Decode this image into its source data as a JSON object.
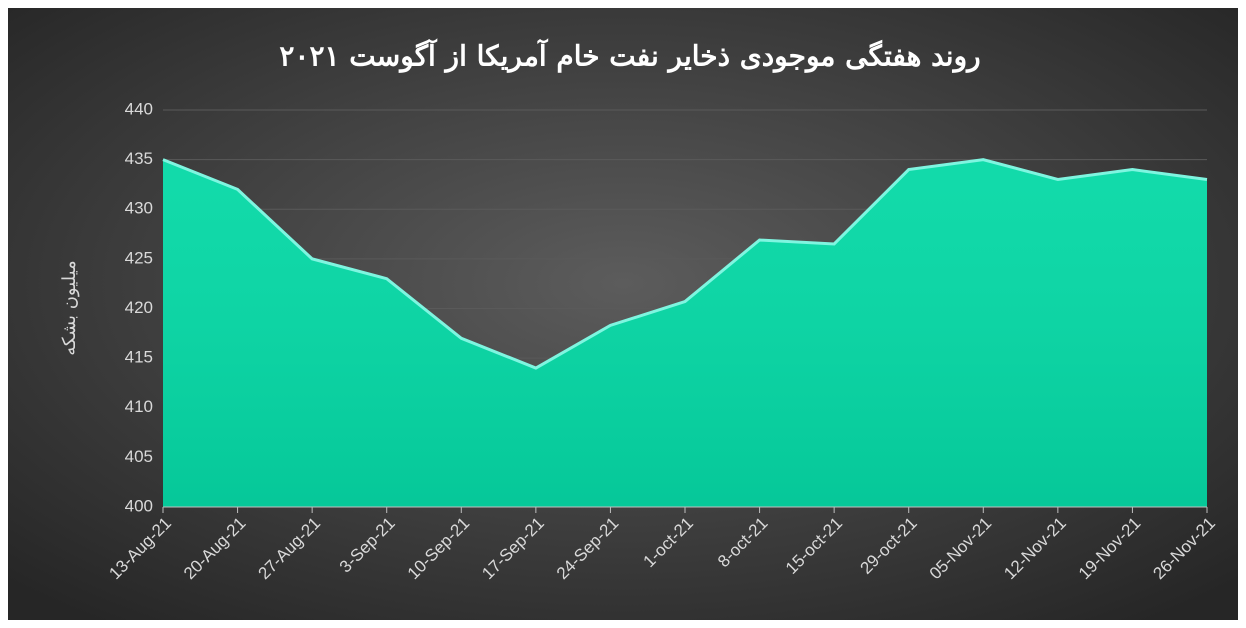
{
  "chart_data": {
    "type": "area",
    "title": "روند هفتگی موجودی ذخایر نفت خام آمریکا از آگوست ۲۰۲۱",
    "y_label": "میلیون بشکه",
    "categories": [
      "13-Aug-21",
      "20-Aug-21",
      "27-Aug-21",
      "3-Sep-21",
      "10-Sep-21",
      "17-Sep-21",
      "24-Sep-21",
      "1-oct-21",
      "8-oct-21",
      "15-oct-21",
      "29-oct-21",
      "05-Nov-21",
      "12-Nov-21",
      "19-Nov-21",
      "26-Nov-21"
    ],
    "values": [
      435,
      432,
      425,
      423,
      417,
      414,
      418.3,
      420.7,
      426.9,
      426.5,
      434,
      435,
      433,
      434,
      433
    ],
    "color": "#06d9a6",
    "ylim": [
      400,
      440
    ],
    "yticks": [
      400,
      405,
      410,
      415,
      420,
      425,
      430,
      435,
      440
    ],
    "grid": true
  }
}
